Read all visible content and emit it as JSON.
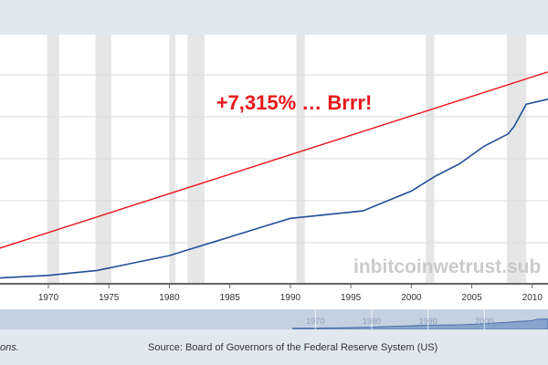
{
  "chart_data": {
    "type": "line",
    "title": "",
    "xlabel": "",
    "ylabel": "",
    "xlim": [
      1966,
      2011.3
    ],
    "ylim": [
      0,
      1
    ],
    "x_ticks": [
      "1970",
      "1975",
      "1980",
      "1985",
      "1990",
      "1995",
      "2000",
      "2005",
      "2010"
    ],
    "navigator_ticks": [
      "1970",
      "1980",
      "1990",
      "2000"
    ],
    "recessions": [
      [
        1969.9,
        1970.9
      ],
      [
        1973.9,
        1975.2
      ],
      [
        1980.0,
        1980.5
      ],
      [
        1981.5,
        1982.9
      ],
      [
        1990.5,
        1991.2
      ],
      [
        2001.2,
        2001.9
      ],
      [
        2007.9,
        2009.5
      ]
    ],
    "series": [
      {
        "color": "#1f4e96",
        "x": [
          1966,
          1968,
          1970,
          1972,
          1974,
          1976,
          1978,
          1980,
          1982,
          1984,
          1986,
          1988,
          1990,
          1992,
          1994,
          1996,
          1998,
          2000,
          2002,
          2004,
          2006,
          2008,
          2008.5,
          2009.5,
          2011.3
        ],
        "y": [
          0.02,
          0.025,
          0.03,
          0.04,
          0.05,
          0.07,
          0.09,
          0.11,
          0.14,
          0.17,
          0.2,
          0.23,
          0.26,
          0.27,
          0.28,
          0.29,
          0.33,
          0.37,
          0.43,
          0.48,
          0.55,
          0.6,
          0.63,
          0.72,
          0.74
        ]
      },
      {
        "color": "#e8171a",
        "x": [
          1966,
          2011.3
        ],
        "y": [
          0.14,
          0.85
        ]
      }
    ]
  },
  "annotation": {
    "text": "+7,315% … Brrr!",
    "color": "#e8171a"
  },
  "watermark": "inbitcoinwetrust.sub",
  "footer": {
    "left_note": "ons.",
    "source": "Source: Board of Governors of the Federal Reserve System (US)"
  }
}
